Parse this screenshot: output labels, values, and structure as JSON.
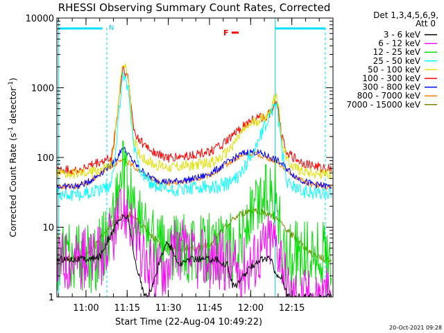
{
  "chart_data": {
    "type": "line",
    "title": "RHESSI Observing Summary Count Rates, Corrected",
    "xlabel": "Start Time (22-Aug-04 10:49:22)",
    "ylabel_main": "Corrected Count Rate (s",
    "ylabel_sup1": "-1",
    "ylabel_mid": " detector",
    "ylabel_sup2": "-1",
    "ylabel_end": ")",
    "yscale": "log",
    "ylim": [
      1,
      10000
    ],
    "xlim": [
      "10:49:22",
      "12:30:00"
    ],
    "x_unit": "minutes after 10:49:22",
    "xlim_minutes": [
      0,
      100.6
    ],
    "x_ticks": [
      {
        "label": "11:00",
        "minute": 10.6
      },
      {
        "label": "11:15",
        "minute": 25.6
      },
      {
        "label": "11:30",
        "minute": 40.6
      },
      {
        "label": "11:45",
        "minute": 55.6
      },
      {
        "label": "12:00",
        "minute": 70.6
      },
      {
        "label": "12:15",
        "minute": 85.6
      }
    ],
    "y_ticks": [
      {
        "label": "1",
        "value": 1
      },
      {
        "label": "10",
        "value": 10
      },
      {
        "label": "100",
        "value": 100
      },
      {
        "label": "1000",
        "value": 1000
      },
      {
        "label": "10000",
        "value": 10000
      }
    ],
    "legend_header": [
      "Det 1,3,4,5,6,9,",
      "Att 0"
    ],
    "legend_position": "top-right",
    "annotations": [
      {
        "text": "N",
        "color": "#00c8ff"
      },
      {
        "text": "F",
        "color": "#ff0000"
      }
    ],
    "series": [
      {
        "name": "3 - 6 keV",
        "color": "#000000",
        "x": [
          0,
          8,
          10,
          12,
          14,
          16,
          18,
          20,
          22,
          24,
          26,
          28,
          30,
          32,
          34,
          36,
          38,
          40,
          42,
          44,
          46,
          48,
          50,
          52,
          54,
          56,
          58,
          60,
          62,
          64,
          66,
          68,
          70,
          72,
          74,
          76,
          78,
          80,
          82,
          84,
          86,
          88,
          90,
          92,
          94,
          96,
          98,
          100
        ],
        "y": [
          3.5,
          3.5,
          3.5,
          3.5,
          3.5,
          4,
          6,
          8,
          12,
          14,
          14,
          4,
          2,
          1,
          1.2,
          2,
          4,
          6,
          5,
          3,
          3,
          3.5,
          3.5,
          3.5,
          3.5,
          3.5,
          3.5,
          3,
          3,
          1.5,
          1.5,
          2,
          2.5,
          3,
          3.5,
          3.5,
          3.5,
          2,
          2,
          1,
          1,
          1,
          1,
          1,
          1,
          1,
          1,
          1
        ]
      },
      {
        "name": "6 - 12 keV",
        "color": "#ff00ff",
        "x": [
          0,
          8,
          10,
          12,
          14,
          16,
          18,
          20,
          22,
          24,
          26,
          28,
          30,
          32,
          34,
          36,
          38,
          40,
          42,
          44,
          46,
          48,
          50,
          52,
          54,
          56,
          58,
          60,
          62,
          64,
          66,
          68,
          70,
          72,
          74,
          76,
          78,
          80,
          82,
          84,
          86,
          88,
          90,
          92,
          94,
          96,
          98,
          100
        ],
        "y": [
          3.5,
          3.5,
          3.5,
          3.5,
          3.5,
          4,
          5,
          7,
          10,
          16,
          17,
          9,
          4,
          2.8,
          2.5,
          2.5,
          2.7,
          3,
          4,
          5,
          4.5,
          3.5,
          3.3,
          3.5,
          3.5,
          3.5,
          3.5,
          3.5,
          3,
          2.5,
          2.5,
          2.8,
          3,
          3.5,
          4.5,
          5.5,
          7,
          6,
          4,
          1.2,
          1,
          1,
          1,
          1,
          1,
          1,
          1,
          1
        ]
      },
      {
        "name": "12 - 25 keV",
        "color": "#00dd00",
        "x": [
          0,
          8,
          10,
          12,
          14,
          16,
          18,
          20,
          22,
          24,
          26,
          28,
          30,
          32,
          34,
          36,
          38,
          40,
          42,
          44,
          46,
          48,
          50,
          52,
          54,
          56,
          58,
          60,
          62,
          64,
          66,
          68,
          70,
          72,
          74,
          76,
          78,
          80,
          82,
          84,
          86,
          88,
          90,
          92,
          94,
          96,
          98,
          100
        ],
        "y": [
          3.5,
          3.5,
          3.5,
          3.5,
          3.5,
          4.5,
          7,
          12,
          30,
          65,
          30,
          18,
          12,
          10,
          7,
          6,
          5,
          5,
          5,
          5,
          5,
          5,
          5,
          5,
          5,
          5,
          5,
          5,
          5,
          5,
          6,
          8,
          12,
          16,
          22,
          30,
          40,
          30,
          4.5,
          4,
          4,
          4,
          4,
          4,
          4,
          4,
          3.5,
          3.5
        ]
      },
      {
        "name": "25 - 50 keV",
        "color": "#00ffff",
        "x": [
          0,
          8,
          10,
          12,
          14,
          16,
          18,
          20,
          22,
          24,
          26,
          28,
          30,
          32,
          34,
          36,
          38,
          40,
          42,
          44,
          46,
          48,
          50,
          52,
          54,
          56,
          58,
          60,
          62,
          64,
          66,
          68,
          70,
          72,
          74,
          76,
          78,
          80,
          82,
          84,
          86,
          88,
          90,
          92,
          94,
          96,
          98,
          100
        ],
        "y": [
          30,
          30,
          31,
          32,
          33,
          35,
          38,
          45,
          220,
          1700,
          900,
          150,
          80,
          50,
          42,
          38,
          36,
          35,
          34,
          34,
          35,
          35,
          36,
          36,
          37,
          38,
          38,
          40,
          42,
          45,
          55,
          70,
          95,
          130,
          200,
          300,
          450,
          650,
          120,
          45,
          38,
          35,
          33,
          32,
          32,
          31,
          31,
          30
        ]
      },
      {
        "name": "50 - 100 keV",
        "color": "#e0e000",
        "x": [
          0,
          8,
          10,
          12,
          14,
          16,
          18,
          20,
          22,
          24,
          26,
          28,
          30,
          32,
          34,
          36,
          38,
          40,
          42,
          44,
          46,
          48,
          50,
          52,
          54,
          56,
          58,
          60,
          62,
          64,
          66,
          68,
          70,
          72,
          74,
          76,
          78,
          80,
          82,
          84,
          86,
          88,
          90,
          92,
          94,
          96,
          98,
          100
        ],
        "y": [
          58,
          58,
          60,
          62,
          65,
          68,
          72,
          80,
          400,
          2500,
          1400,
          180,
          115,
          95,
          85,
          78,
          75,
          74,
          73,
          74,
          75,
          76,
          78,
          80,
          82,
          85,
          90,
          100,
          120,
          150,
          190,
          240,
          290,
          320,
          350,
          380,
          480,
          900,
          180,
          90,
          75,
          68,
          64,
          62,
          60,
          58,
          57,
          56
        ]
      },
      {
        "name": "100 - 300 keV",
        "color": "#ff0000",
        "x": [
          0,
          8,
          10,
          12,
          14,
          16,
          18,
          20,
          22,
          24,
          26,
          28,
          30,
          32,
          34,
          36,
          38,
          40,
          42,
          44,
          46,
          48,
          50,
          52,
          54,
          56,
          58,
          60,
          62,
          64,
          66,
          68,
          70,
          72,
          74,
          76,
          78,
          80,
          82,
          84,
          86,
          88,
          90,
          92,
          94,
          96,
          98,
          100
        ],
        "y": [
          65,
          66,
          70,
          75,
          80,
          85,
          90,
          100,
          400,
          2000,
          1300,
          250,
          180,
          150,
          130,
          115,
          105,
          100,
          98,
          100,
          102,
          105,
          108,
          112,
          118,
          125,
          135,
          150,
          170,
          200,
          240,
          280,
          320,
          350,
          370,
          390,
          450,
          700,
          200,
          120,
          100,
          90,
          82,
          78,
          74,
          72,
          70,
          68
        ]
      },
      {
        "name": "300 - 800 keV",
        "color": "#0000ff",
        "x": [
          0,
          8,
          10,
          12,
          14,
          16,
          18,
          20,
          22,
          24,
          26,
          28,
          30,
          32,
          34,
          36,
          38,
          40,
          42,
          44,
          46,
          48,
          50,
          52,
          54,
          56,
          58,
          60,
          62,
          64,
          66,
          68,
          70,
          72,
          74,
          76,
          78,
          80,
          82,
          84,
          86,
          88,
          90,
          92,
          94,
          96,
          98,
          100
        ],
        "y": [
          38,
          39,
          42,
          46,
          52,
          60,
          70,
          80,
          100,
          140,
          110,
          85,
          70,
          60,
          52,
          48,
          46,
          45,
          45,
          46,
          47,
          48,
          50,
          52,
          55,
          60,
          66,
          74,
          84,
          95,
          105,
          115,
          120,
          120,
          115,
          108,
          100,
          92,
          80,
          68,
          58,
          50,
          46,
          43,
          41,
          40,
          39,
          38
        ]
      },
      {
        "name": "800 - 7000 keV",
        "color": "#ff8000",
        "x": [
          0,
          8,
          10,
          12,
          14,
          16,
          18,
          20,
          22,
          24,
          26,
          28,
          30,
          32,
          34,
          36,
          38,
          40,
          42,
          44,
          46,
          48,
          50,
          52,
          54,
          56,
          58,
          60,
          62,
          64,
          66,
          68,
          70,
          72,
          74,
          76,
          78,
          80,
          82,
          84,
          86,
          88,
          90,
          92,
          94,
          96,
          98,
          100
        ],
        "y": [
          38,
          39,
          42,
          46,
          52,
          60,
          68,
          76,
          84,
          90,
          85,
          75,
          65,
          56,
          50,
          46,
          44,
          43,
          43,
          44,
          45,
          46,
          48,
          50,
          53,
          57,
          62,
          70,
          80,
          90,
          100,
          108,
          112,
          112,
          108,
          100,
          94,
          86,
          76,
          65,
          56,
          49,
          45,
          42,
          40,
          39,
          38,
          37
        ]
      },
      {
        "name": "7000 - 15000 keV",
        "color": "#808000",
        "x": [
          0,
          8,
          10,
          12,
          14,
          16,
          18,
          20,
          22,
          24,
          26,
          28,
          30,
          32,
          34,
          36,
          38,
          40,
          42,
          44,
          46,
          48,
          50,
          52,
          54,
          56,
          58,
          60,
          62,
          64,
          66,
          68,
          70,
          72,
          74,
          76,
          78,
          80,
          82,
          84,
          86,
          88,
          90,
          92,
          94,
          96,
          98,
          100
        ],
        "y": [
          3.5,
          3.6,
          4,
          4.5,
          5.5,
          7,
          9,
          11,
          13,
          15,
          15.5,
          14,
          12,
          10,
          8,
          6.5,
          5.5,
          5,
          5,
          5,
          5,
          5,
          5,
          5,
          5.5,
          6,
          7,
          8.5,
          10.5,
          12.5,
          14.5,
          16,
          17,
          17.5,
          17,
          16,
          14.5,
          13,
          11,
          9,
          7.5,
          6.2,
          5.2,
          4.5,
          4,
          3.7,
          3.5,
          3.4
        ]
      }
    ]
  },
  "footer_timestamp": "20-Oct-2021 09:28"
}
